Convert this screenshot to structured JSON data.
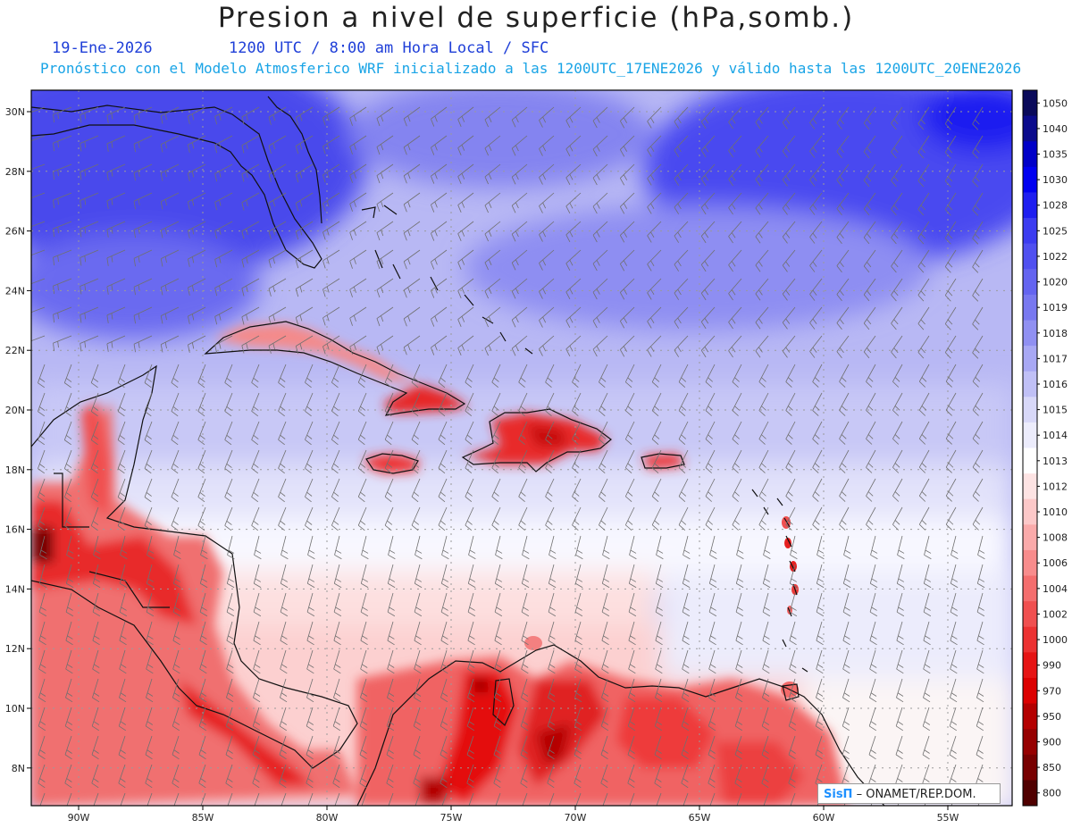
{
  "header": {
    "title": "Presion a nivel de superficie (hPa,somb.)",
    "date": "19-Ene-2026",
    "time_line": "1200 UTC / 8:00 am Hora Local / SFC",
    "forecast_line": "Pronóstico con el Modelo Atmosferico WRF inicializado a las 1200UTC_17ENE2026 y válido hasta las  1200UTC_20ENE2026"
  },
  "map": {
    "lat_labels": [
      "30N",
      "28N",
      "26N",
      "24N",
      "22N",
      "20N",
      "18N",
      "16N",
      "14N",
      "12N",
      "10N",
      "8N"
    ],
    "lat_values": [
      30,
      28,
      26,
      24,
      22,
      20,
      18,
      16,
      14,
      12,
      10,
      8
    ],
    "lon_labels": [
      "90W",
      "85W",
      "80W",
      "75W",
      "70W",
      "65W",
      "60W",
      "55W"
    ],
    "lon_values": [
      -90,
      -85,
      -80,
      -75,
      -70,
      -65,
      -60,
      -55
    ]
  },
  "colorbar": {
    "levels": [
      "1050",
      "1040",
      "1035",
      "1030",
      "1028",
      "1025",
      "1022",
      "1020",
      "1019",
      "1018",
      "1017",
      "1016",
      "1015",
      "1014",
      "1013",
      "1012",
      "1010",
      "1008",
      "1006",
      "1004",
      "1002",
      "1000",
      "990",
      "970",
      "950",
      "900",
      "850",
      "800"
    ],
    "colors": [
      "#0a0a5a",
      "#0b0b8c",
      "#0000c8",
      "#0000f0",
      "#1e1ef0",
      "#3c3cf0",
      "#5050f0",
      "#6464f0",
      "#7878f0",
      "#9090f2",
      "#a8a8f4",
      "#c0c0f6",
      "#d8d8f8",
      "#ececfc",
      "#ffffff",
      "#fde3e3",
      "#fcc8c8",
      "#faaaaa",
      "#f88c8c",
      "#f46e6e",
      "#f05050",
      "#ec3232",
      "#e61414",
      "#dc0000",
      "#b40000",
      "#960000",
      "#780000",
      "#500000"
    ]
  },
  "credit": {
    "logo": "SisΠ",
    "text": "– ONAMET/REP.DOM."
  }
}
